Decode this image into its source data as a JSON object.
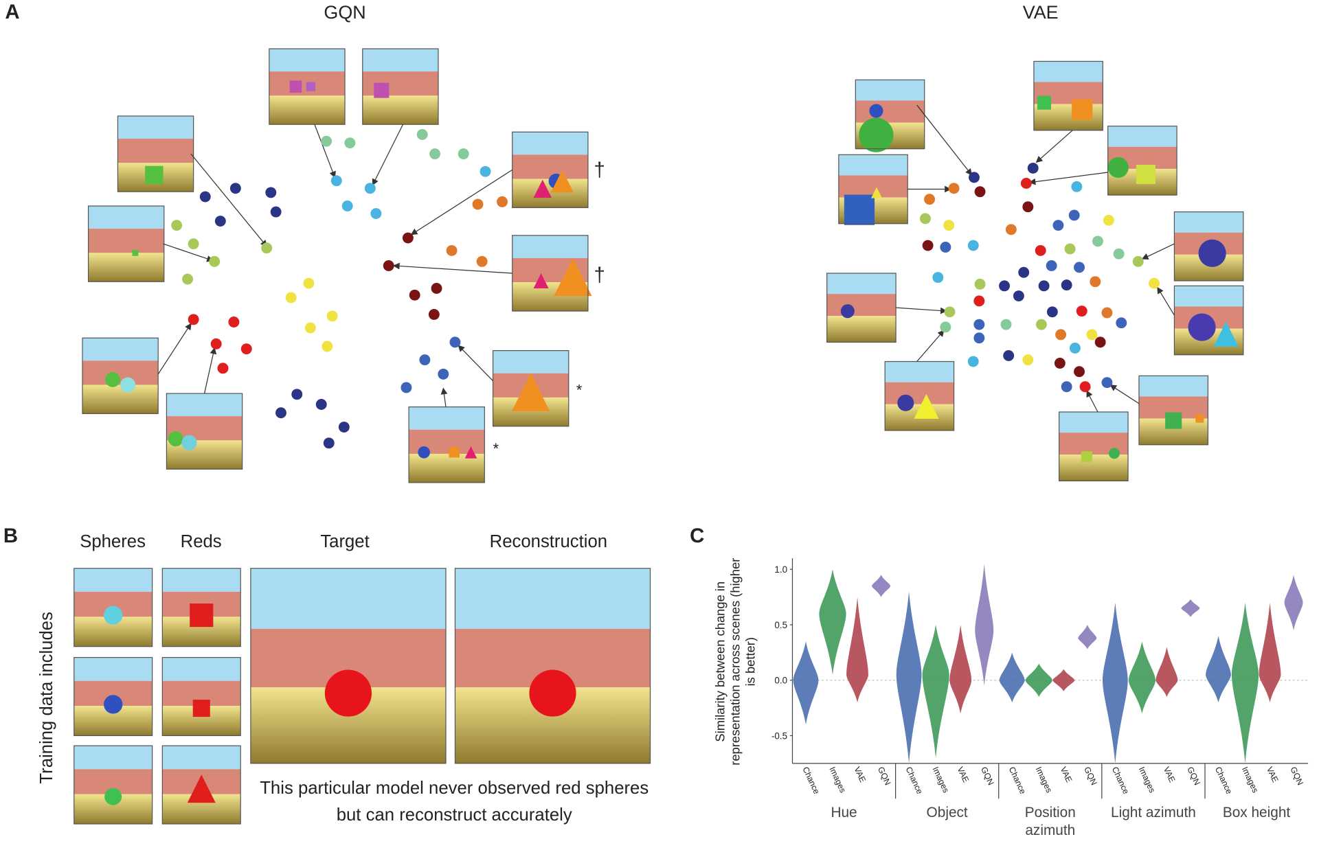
{
  "panel_a": {
    "label": "A",
    "gqn_title": "GQN",
    "vae_title": "VAE",
    "markers": [
      "†",
      "†",
      "*",
      "*"
    ]
  },
  "panel_b": {
    "label": "B",
    "columns": [
      "Spheres",
      "Reds",
      "Target",
      "Reconstruction"
    ],
    "row_label": "Training data includes",
    "caption": "This particular model never observed red spheres but can reconstruct accurately"
  },
  "chart_data": {
    "type": "violin",
    "panel_label": "C",
    "ylabel": "Similarity between change in representation across scenes (higher is better)",
    "categories": [
      "Hue",
      "Object",
      "Position azimuth",
      "Light azimuth",
      "Box height"
    ],
    "series": [
      {
        "name": "Chance",
        "color": "#4a6fb0",
        "values": [
          0,
          0.05,
          0,
          0,
          0.05
        ],
        "min": [
          -0.4,
          -0.75,
          -0.2,
          -0.75,
          -0.2
        ],
        "max": [
          0.35,
          0.8,
          0.25,
          0.7,
          0.4
        ]
      },
      {
        "name": "Images",
        "color": "#3f9a5a",
        "values": [
          0.6,
          0.05,
          0,
          0,
          0.05
        ],
        "min": [
          0.05,
          -0.7,
          -0.15,
          -0.3,
          -0.75
        ],
        "max": [
          1.0,
          0.5,
          0.15,
          0.35,
          0.7
        ]
      },
      {
        "name": "VAE",
        "color": "#b0454f",
        "values": [
          0.05,
          0,
          0,
          0,
          0.05
        ],
        "min": [
          -0.2,
          -0.3,
          -0.1,
          -0.15,
          -0.2
        ],
        "max": [
          0.75,
          0.5,
          0.1,
          0.3,
          0.7
        ]
      },
      {
        "name": "GQN",
        "color": "#8a7ab8",
        "values": [
          0.85,
          0.45,
          0.38,
          0.65,
          0.7
        ],
        "min": [
          0.75,
          -0.05,
          0.28,
          0.57,
          0.45
        ],
        "max": [
          0.95,
          1.05,
          0.5,
          0.73,
          0.95
        ]
      }
    ],
    "ylim": [
      -0.75,
      1.1
    ],
    "yticks": [
      {
        "value": 1,
        "label": "1.0"
      },
      0.5,
      {
        "value": 0,
        "label": "0.0"
      },
      -0.5
    ],
    "zero_line": true
  }
}
